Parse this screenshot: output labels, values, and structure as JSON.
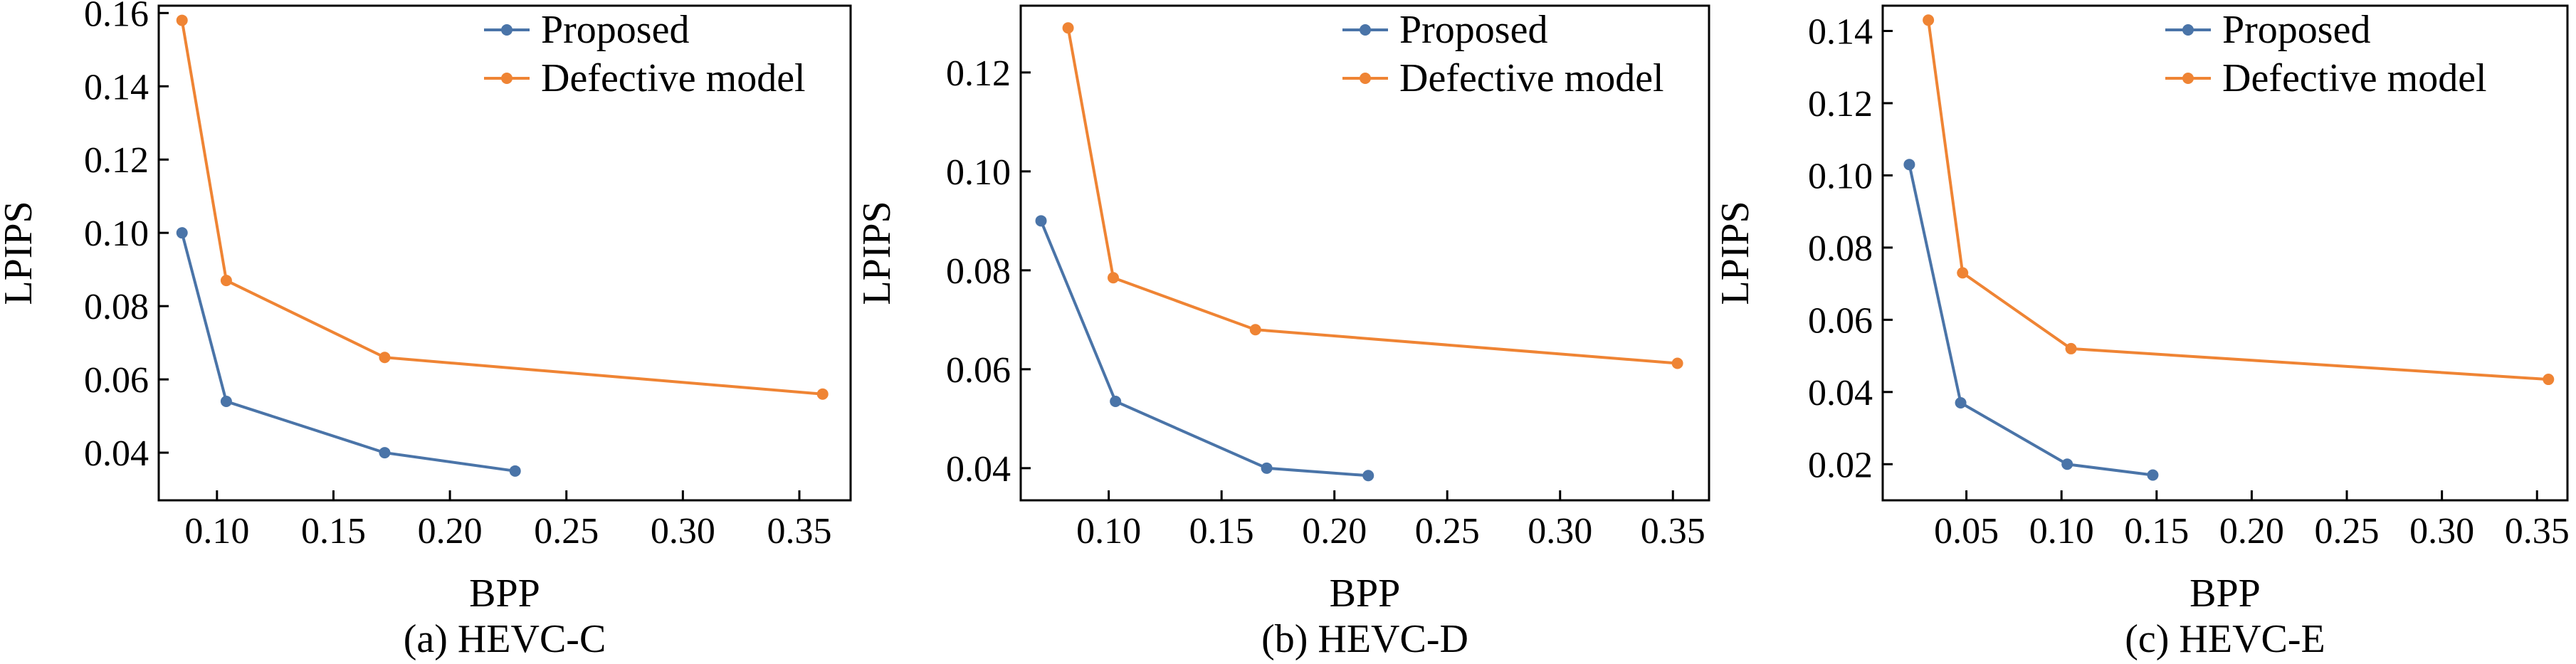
{
  "figure": {
    "colors": {
      "proposed": "#4a74a8",
      "defective": "#ef8434",
      "axis": "#000000",
      "background": "#ffffff"
    }
  },
  "chart_data": [
    {
      "type": "line",
      "caption": "(a) HEVC-C",
      "xlabel": "BPP",
      "ylabel": "LPIPS",
      "xlim": [
        0.075,
        0.372
      ],
      "ylim": [
        0.027,
        0.162
      ],
      "x_ticks": [
        0.1,
        0.15,
        0.2,
        0.25,
        0.3,
        0.35
      ],
      "x_tick_labels": [
        "0.10",
        "0.15",
        "0.20",
        "0.25",
        "0.30",
        "0.35"
      ],
      "y_ticks": [
        0.04,
        0.06,
        0.08,
        0.1,
        0.12,
        0.14,
        0.16
      ],
      "y_tick_labels": [
        "0.04",
        "0.06",
        "0.08",
        "0.10",
        "0.12",
        "0.14",
        "0.16"
      ],
      "grid": false,
      "legend_position": "top-right",
      "series": [
        {
          "name": "Proposed",
          "color": "#4a74a8",
          "points": [
            [
              0.085,
              0.1
            ],
            [
              0.104,
              0.054
            ],
            [
              0.172,
              0.04
            ],
            [
              0.228,
              0.035
            ]
          ]
        },
        {
          "name": "Defective model",
          "color": "#ef8434",
          "points": [
            [
              0.085,
              0.158
            ],
            [
              0.104,
              0.087
            ],
            [
              0.172,
              0.066
            ],
            [
              0.36,
              0.056
            ]
          ]
        }
      ]
    },
    {
      "type": "line",
      "caption": "(b) HEVC-D",
      "xlabel": "BPP",
      "ylabel": "LPIPS",
      "xlim": [
        0.061,
        0.366
      ],
      "ylim": [
        0.0335,
        0.1335
      ],
      "x_ticks": [
        0.1,
        0.15,
        0.2,
        0.25,
        0.3,
        0.35
      ],
      "x_tick_labels": [
        "0.10",
        "0.15",
        "0.20",
        "0.25",
        "0.30",
        "0.35"
      ],
      "y_ticks": [
        0.04,
        0.06,
        0.08,
        0.1,
        0.12
      ],
      "y_tick_labels": [
        "0.04",
        "0.06",
        "0.08",
        "0.10",
        "0.12"
      ],
      "grid": false,
      "legend_position": "top-right",
      "series": [
        {
          "name": "Proposed",
          "color": "#4a74a8",
          "points": [
            [
              0.07,
              0.09
            ],
            [
              0.103,
              0.0535
            ],
            [
              0.17,
              0.04
            ],
            [
              0.215,
              0.0385
            ]
          ]
        },
        {
          "name": "Defective model",
          "color": "#ef8434",
          "points": [
            [
              0.082,
              0.129
            ],
            [
              0.102,
              0.0785
            ],
            [
              0.165,
              0.068
            ],
            [
              0.352,
              0.0612
            ]
          ]
        }
      ]
    },
    {
      "type": "line",
      "caption": "(c) HEVC-E",
      "xlabel": "BPP",
      "ylabel": "LPIPS",
      "xlim": [
        0.006,
        0.366
      ],
      "ylim": [
        0.01,
        0.147
      ],
      "x_ticks": [
        0.05,
        0.1,
        0.15,
        0.2,
        0.25,
        0.3,
        0.35
      ],
      "x_tick_labels": [
        "0.05",
        "0.10",
        "0.15",
        "0.20",
        "0.25",
        "0.30",
        "0.35"
      ],
      "y_ticks": [
        0.02,
        0.04,
        0.06,
        0.08,
        0.1,
        0.12,
        0.14
      ],
      "y_tick_labels": [
        "0.02",
        "0.04",
        "0.06",
        "0.08",
        "0.10",
        "0.12",
        "0.14"
      ],
      "grid": false,
      "legend_position": "top-right",
      "series": [
        {
          "name": "Proposed",
          "color": "#4a74a8",
          "points": [
            [
              0.02,
              0.103
            ],
            [
              0.047,
              0.037
            ],
            [
              0.103,
              0.02
            ],
            [
              0.148,
              0.017
            ]
          ]
        },
        {
          "name": "Defective model",
          "color": "#ef8434",
          "points": [
            [
              0.03,
              0.143
            ],
            [
              0.048,
              0.073
            ],
            [
              0.105,
              0.052
            ],
            [
              0.356,
              0.0435
            ]
          ]
        }
      ]
    }
  ]
}
